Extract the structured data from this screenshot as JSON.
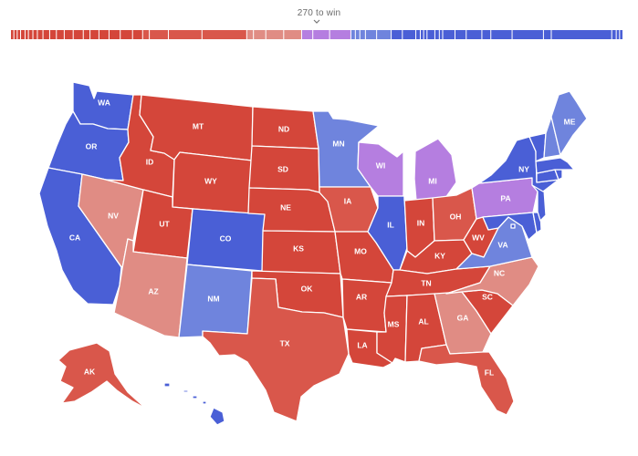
{
  "header": {
    "threshold_label": "270 to win"
  },
  "colors": {
    "safe_r": "#d4463a",
    "likely_r": "#d9574b",
    "lean_r": "#e08c84",
    "tossup": "#b57ee0",
    "lean_d": "#6f84dd",
    "safe_d": "#4a5fd6",
    "border": "#ffffff"
  },
  "states": {
    "WA": {
      "abbr": "WA",
      "rating": "safe_d"
    },
    "OR": {
      "abbr": "OR",
      "rating": "safe_d"
    },
    "CA": {
      "abbr": "CA",
      "rating": "safe_d"
    },
    "ID": {
      "abbr": "ID",
      "rating": "safe_r"
    },
    "NV": {
      "abbr": "NV",
      "rating": "lean_r"
    },
    "MT": {
      "abbr": "MT",
      "rating": "safe_r"
    },
    "WY": {
      "abbr": "WY",
      "rating": "safe_r"
    },
    "UT": {
      "abbr": "UT",
      "rating": "safe_r"
    },
    "AZ": {
      "abbr": "AZ",
      "rating": "lean_r"
    },
    "CO": {
      "abbr": "CO",
      "rating": "safe_d"
    },
    "NM": {
      "abbr": "NM",
      "rating": "lean_d"
    },
    "ND": {
      "abbr": "ND",
      "rating": "safe_r"
    },
    "SD": {
      "abbr": "SD",
      "rating": "safe_r"
    },
    "NE": {
      "abbr": "NE",
      "rating": "safe_r"
    },
    "KS": {
      "abbr": "KS",
      "rating": "safe_r"
    },
    "OK": {
      "abbr": "OK",
      "rating": "safe_r"
    },
    "TX": {
      "abbr": "TX",
      "rating": "likely_r"
    },
    "MN": {
      "abbr": "MN",
      "rating": "lean_d"
    },
    "IA": {
      "abbr": "IA",
      "rating": "likely_r"
    },
    "MO": {
      "abbr": "MO",
      "rating": "safe_r"
    },
    "AR": {
      "abbr": "AR",
      "rating": "safe_r"
    },
    "LA": {
      "abbr": "LA",
      "rating": "safe_r"
    },
    "WI": {
      "abbr": "WI",
      "rating": "tossup"
    },
    "IL": {
      "abbr": "IL",
      "rating": "safe_d"
    },
    "MI": {
      "abbr": "MI",
      "rating": "tossup"
    },
    "IN": {
      "abbr": "IN",
      "rating": "safe_r"
    },
    "OH": {
      "abbr": "OH",
      "rating": "likely_r"
    },
    "KY": {
      "abbr": "KY",
      "rating": "safe_r"
    },
    "TN": {
      "abbr": "TN",
      "rating": "safe_r"
    },
    "MS": {
      "abbr": "MS",
      "rating": "safe_r"
    },
    "AL": {
      "abbr": "AL",
      "rating": "safe_r"
    },
    "GA": {
      "abbr": "GA",
      "rating": "lean_r"
    },
    "FL": {
      "abbr": "FL",
      "rating": "likely_r"
    },
    "SC": {
      "abbr": "SC",
      "rating": "safe_r"
    },
    "NC": {
      "abbr": "NC",
      "rating": "lean_r"
    },
    "VA": {
      "abbr": "VA",
      "rating": "lean_d"
    },
    "WV": {
      "abbr": "WV",
      "rating": "safe_r"
    },
    "PA": {
      "abbr": "PA",
      "rating": "tossup"
    },
    "NY": {
      "abbr": "NY",
      "rating": "safe_d"
    },
    "ME": {
      "abbr": "ME",
      "rating": "lean_d"
    },
    "AK": {
      "abbr": "AK",
      "rating": "likely_r"
    },
    "VT": {
      "rating": "safe_d"
    },
    "NH": {
      "rating": "lean_d"
    },
    "MA": {
      "rating": "safe_d"
    },
    "RI": {
      "rating": "safe_d"
    },
    "CT": {
      "rating": "safe_d"
    },
    "NJ": {
      "rating": "safe_d"
    },
    "DE": {
      "rating": "safe_d"
    },
    "MD": {
      "rating": "safe_d"
    },
    "DC": {
      "rating": "safe_d"
    },
    "HI": {
      "rating": "safe_d"
    }
  },
  "ev_bar": [
    {
      "rating": "safe_r",
      "ev": 3
    },
    {
      "rating": "safe_r",
      "ev": 3
    },
    {
      "rating": "safe_r",
      "ev": 3
    },
    {
      "rating": "safe_r",
      "ev": 4
    },
    {
      "rating": "safe_r",
      "ev": 3
    },
    {
      "rating": "safe_r",
      "ev": 4
    },
    {
      "rating": "safe_r",
      "ev": 4
    },
    {
      "rating": "safe_r",
      "ev": 5
    },
    {
      "rating": "safe_r",
      "ev": 6
    },
    {
      "rating": "safe_r",
      "ev": 6
    },
    {
      "rating": "safe_r",
      "ev": 7
    },
    {
      "rating": "safe_r",
      "ev": 8
    },
    {
      "rating": "safe_r",
      "ev": 9
    },
    {
      "rating": "safe_r",
      "ev": 6
    },
    {
      "rating": "safe_r",
      "ev": 8
    },
    {
      "rating": "safe_r",
      "ev": 9
    },
    {
      "rating": "safe_r",
      "ev": 10
    },
    {
      "rating": "safe_r",
      "ev": 11
    },
    {
      "rating": "safe_r",
      "ev": 9
    },
    {
      "rating": "likely_r",
      "ev": 6
    },
    {
      "rating": "likely_r",
      "ev": 17
    },
    {
      "rating": "likely_r",
      "ev": 30
    },
    {
      "rating": "likely_r",
      "ev": 40
    },
    {
      "rating": "lean_r",
      "ev": 6
    },
    {
      "rating": "lean_r",
      "ev": 11
    },
    {
      "rating": "lean_r",
      "ev": 16
    },
    {
      "rating": "lean_r",
      "ev": 16
    },
    {
      "rating": "tossup",
      "ev": 10
    },
    {
      "rating": "tossup",
      "ev": 15
    },
    {
      "rating": "tossup",
      "ev": 19
    },
    {
      "rating": "lean_d",
      "ev": 4
    },
    {
      "rating": "lean_d",
      "ev": 4
    },
    {
      "rating": "lean_d",
      "ev": 5
    },
    {
      "rating": "lean_d",
      "ev": 10
    },
    {
      "rating": "lean_d",
      "ev": 13
    },
    {
      "rating": "safe_d",
      "ev": 10
    },
    {
      "rating": "safe_d",
      "ev": 12
    },
    {
      "rating": "safe_d",
      "ev": 4
    },
    {
      "rating": "safe_d",
      "ev": 3
    },
    {
      "rating": "safe_d",
      "ev": 3
    },
    {
      "rating": "safe_d",
      "ev": 7
    },
    {
      "rating": "safe_d",
      "ev": 4
    },
    {
      "rating": "safe_d",
      "ev": 3
    },
    {
      "rating": "safe_d",
      "ev": 11
    },
    {
      "rating": "safe_d",
      "ev": 10
    },
    {
      "rating": "safe_d",
      "ev": 14
    },
    {
      "rating": "safe_d",
      "ev": 8
    },
    {
      "rating": "safe_d",
      "ev": 19
    },
    {
      "rating": "safe_d",
      "ev": 28
    },
    {
      "rating": "safe_d",
      "ev": 7
    },
    {
      "rating": "safe_d",
      "ev": 54
    },
    {
      "rating": "safe_d",
      "ev": 4
    },
    {
      "rating": "safe_d",
      "ev": 3
    },
    {
      "rating": "safe_d",
      "ev": 3
    }
  ]
}
